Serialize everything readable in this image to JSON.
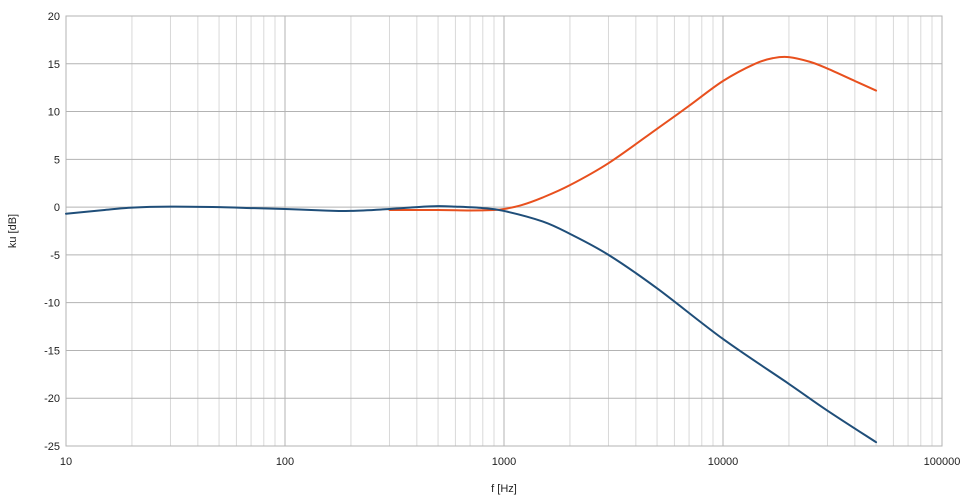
{
  "chart_data": {
    "type": "line",
    "title": "",
    "xlabel": "f [Hz]",
    "ylabel": "ku [dB]",
    "x_scale": "log",
    "xlim": [
      10,
      100000
    ],
    "ylim": [
      -25,
      20
    ],
    "x_ticks": [
      10,
      100,
      1000,
      10000,
      100000
    ],
    "x_tick_labels": [
      "10",
      "100",
      "1000",
      "10000",
      "100000"
    ],
    "y_ticks": [
      20,
      15,
      10,
      5,
      0,
      -5,
      -10,
      -15,
      -20,
      -25
    ],
    "y_tick_labels": [
      "20",
      "15",
      "10",
      "5",
      "0",
      "-5",
      "-10",
      "-15",
      "-20",
      "-25"
    ],
    "grid": true,
    "legend": "none",
    "series": [
      {
        "color": "#e8501e",
        "x": [
          300,
          500,
          700,
          900,
          1000,
          1200,
          1500,
          2000,
          3000,
          5000,
          7000,
          10000,
          14000,
          17000,
          20000,
          25000,
          30000,
          40000,
          50000
        ],
        "y": [
          -0.3,
          -0.3,
          -0.35,
          -0.3,
          -0.2,
          0.2,
          1.0,
          2.3,
          4.6,
          8.2,
          10.6,
          13.2,
          15.0,
          15.6,
          15.7,
          15.2,
          14.5,
          13.2,
          12.2
        ]
      },
      {
        "color": "#1f4e79",
        "x": [
          10,
          15,
          20,
          30,
          50,
          70,
          100,
          150,
          200,
          300,
          400,
          500,
          600,
          800,
          1000,
          1500,
          2000,
          3000,
          5000,
          10000,
          20000,
          30000,
          50000
        ],
        "y": [
          -0.7,
          -0.3,
          -0.05,
          0.05,
          0.0,
          -0.1,
          -0.2,
          -0.35,
          -0.4,
          -0.2,
          0.0,
          0.1,
          0.05,
          -0.1,
          -0.4,
          -1.5,
          -2.8,
          -5.0,
          -8.5,
          -13.8,
          -18.5,
          -21.3,
          -24.6
        ]
      }
    ]
  }
}
